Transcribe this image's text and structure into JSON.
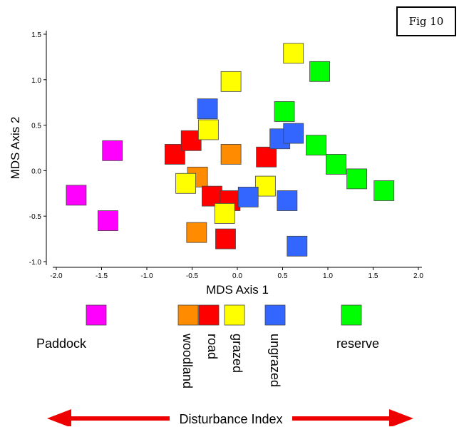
{
  "figure": {
    "label": "Fig 10"
  },
  "chart_data": {
    "type": "scatter",
    "title": "",
    "xlabel": "MDS Axis 1",
    "ylabel": "MDS Axis 2",
    "xlim": [
      -2.0,
      2.0
    ],
    "ylim": [
      -1.0,
      1.5
    ],
    "xticks": [
      "-2.0",
      "-1.5",
      "-1.0",
      "-0.5",
      "0.0",
      "0.5",
      "1.0",
      "1.5",
      "2.0"
    ],
    "yticks": [
      "-1.0",
      "-0.5",
      "0.0",
      "0.5",
      "1.0",
      "1.5"
    ],
    "grid": false,
    "marker": "square",
    "series": [
      {
        "name": "Paddock",
        "color": "#ff00ff",
        "points": [
          [
            -1.78,
            -0.27
          ],
          [
            -1.43,
            -0.55
          ],
          [
            -1.38,
            0.22
          ]
        ]
      },
      {
        "name": "woodland",
        "color": "#ff8c00",
        "points": [
          [
            -0.45,
            -0.68
          ],
          [
            -0.44,
            -0.07
          ],
          [
            -0.07,
            0.18
          ]
        ]
      },
      {
        "name": "road",
        "color": "#ff0000",
        "points": [
          [
            -0.69,
            0.18
          ],
          [
            -0.51,
            0.33
          ],
          [
            -0.28,
            -0.28
          ],
          [
            -0.08,
            -0.33
          ],
          [
            -0.13,
            -0.75
          ],
          [
            0.32,
            0.15
          ]
        ]
      },
      {
        "name": "grazed",
        "color": "#ffff00",
        "points": [
          [
            -0.57,
            -0.14
          ],
          [
            -0.32,
            0.45
          ],
          [
            -0.14,
            -0.47
          ],
          [
            -0.07,
            0.98
          ],
          [
            0.31,
            -0.17
          ],
          [
            0.62,
            1.29
          ]
        ]
      },
      {
        "name": "ungrazed",
        "color": "#3366ff",
        "points": [
          [
            -0.33,
            0.68
          ],
          [
            0.12,
            -0.29
          ],
          [
            0.47,
            0.35
          ],
          [
            0.55,
            -0.33
          ],
          [
            0.62,
            0.41
          ],
          [
            0.66,
            -0.83
          ]
        ]
      },
      {
        "name": "reserve",
        "color": "#00ff00",
        "points": [
          [
            0.52,
            0.65
          ],
          [
            0.87,
            0.28
          ],
          [
            0.91,
            1.09
          ],
          [
            1.09,
            0.07
          ],
          [
            1.32,
            -0.09
          ],
          [
            1.62,
            -0.22
          ]
        ]
      }
    ],
    "legend": {
      "placement": "bottom"
    }
  },
  "legend_items": [
    {
      "label": "Paddock",
      "color": "#ff00ff"
    },
    {
      "label": "woodland",
      "color": "#ff8c00"
    },
    {
      "label": "road",
      "color": "#ff0000"
    },
    {
      "label": "grazed",
      "color": "#ffff00"
    },
    {
      "label": "ungrazed",
      "color": "#3366ff"
    },
    {
      "label": "reserve",
      "color": "#00ff00"
    }
  ],
  "gradient_arrow": {
    "label": "Disturbance Index",
    "color": "#ff0000"
  }
}
